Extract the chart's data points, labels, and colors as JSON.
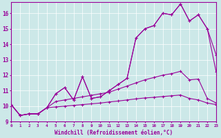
{
  "xlabel": "Windchill (Refroidissement éolien,°C)",
  "background_color": "#cce8e8",
  "line_color": "#990099",
  "xlim": [
    0,
    23
  ],
  "ylim": [
    9,
    16.7
  ],
  "xticks": [
    0,
    1,
    2,
    3,
    4,
    5,
    6,
    7,
    8,
    9,
    10,
    11,
    12,
    13,
    14,
    15,
    16,
    17,
    18,
    19,
    20,
    21,
    22,
    23
  ],
  "yticks": [
    9,
    10,
    11,
    12,
    13,
    14,
    15,
    16
  ],
  "series": [
    [
      10.1,
      9.4,
      9.5,
      9.5,
      9.9,
      10.8,
      11.2,
      10.4,
      11.9,
      10.5,
      10.6,
      11.0,
      11.4,
      11.8,
      14.4,
      15.0,
      15.2,
      16.0,
      15.9,
      16.6,
      15.5,
      15.9,
      15.0,
      12.2
    ],
    [
      10.1,
      9.4,
      9.5,
      9.5,
      9.9,
      10.8,
      11.2,
      10.4,
      11.9,
      10.5,
      10.6,
      11.0,
      11.4,
      11.8,
      14.4,
      15.0,
      15.2,
      16.0,
      15.9,
      16.6,
      15.5,
      15.9,
      15.0,
      13.3
    ],
    [
      10.1,
      9.4,
      9.5,
      9.5,
      9.9,
      10.3,
      10.4,
      10.5,
      10.6,
      10.7,
      10.8,
      10.9,
      11.1,
      11.3,
      11.5,
      11.7,
      11.85,
      12.0,
      12.1,
      12.25,
      11.7,
      11.75,
      10.5,
      10.2
    ],
    [
      10.1,
      9.4,
      9.5,
      9.5,
      9.9,
      9.95,
      10.0,
      10.05,
      10.1,
      10.15,
      10.2,
      10.27,
      10.33,
      10.4,
      10.47,
      10.53,
      10.57,
      10.62,
      10.67,
      10.72,
      10.5,
      10.4,
      10.2,
      10.1
    ]
  ]
}
